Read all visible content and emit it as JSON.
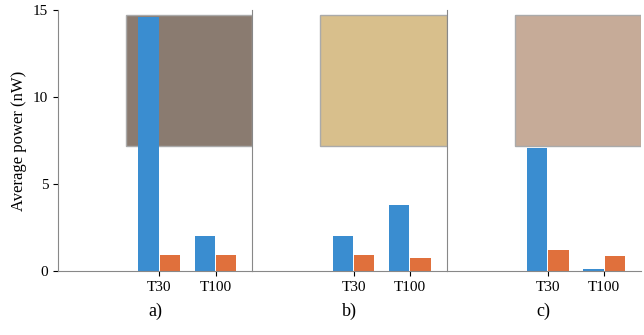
{
  "chart_data": [
    {
      "type": "bar",
      "xlabel": "a)",
      "ylabel": "Average power (nW)",
      "categories": [
        "T30",
        "T100"
      ],
      "series": [
        {
          "color": "#3a8dd0",
          "values": [
            14.6,
            2.05
          ]
        },
        {
          "color": "#e0703c",
          "values": [
            0.95,
            0.95
          ]
        }
      ],
      "ylim": [
        0,
        15
      ],
      "yticks": [
        0,
        5,
        10,
        15
      ]
    },
    {
      "type": "bar",
      "xlabel": "b)",
      "categories": [
        "T30",
        "T100"
      ],
      "series": [
        {
          "color": "#3a8dd0",
          "values": [
            2.05,
            3.8
          ]
        },
        {
          "color": "#e0703c",
          "values": [
            0.95,
            0.75
          ]
        }
      ],
      "ylim": [
        0,
        15
      ],
      "yticks": [
        0,
        5,
        10,
        15
      ],
      "tick_labels": "x"
    },
    {
      "type": "bar",
      "xlabel": "c)",
      "categories": [
        "T30",
        "T100"
      ],
      "series": [
        {
          "color": "#3a8dd0",
          "values": [
            7.1,
            0.12
          ]
        },
        {
          "color": "#e0703c",
          "values": [
            1.2,
            0.9
          ]
        }
      ],
      "ylim": [
        0,
        15
      ],
      "yticks": [
        0,
        5,
        10,
        15
      ],
      "tick_labels": "x"
    }
  ]
}
